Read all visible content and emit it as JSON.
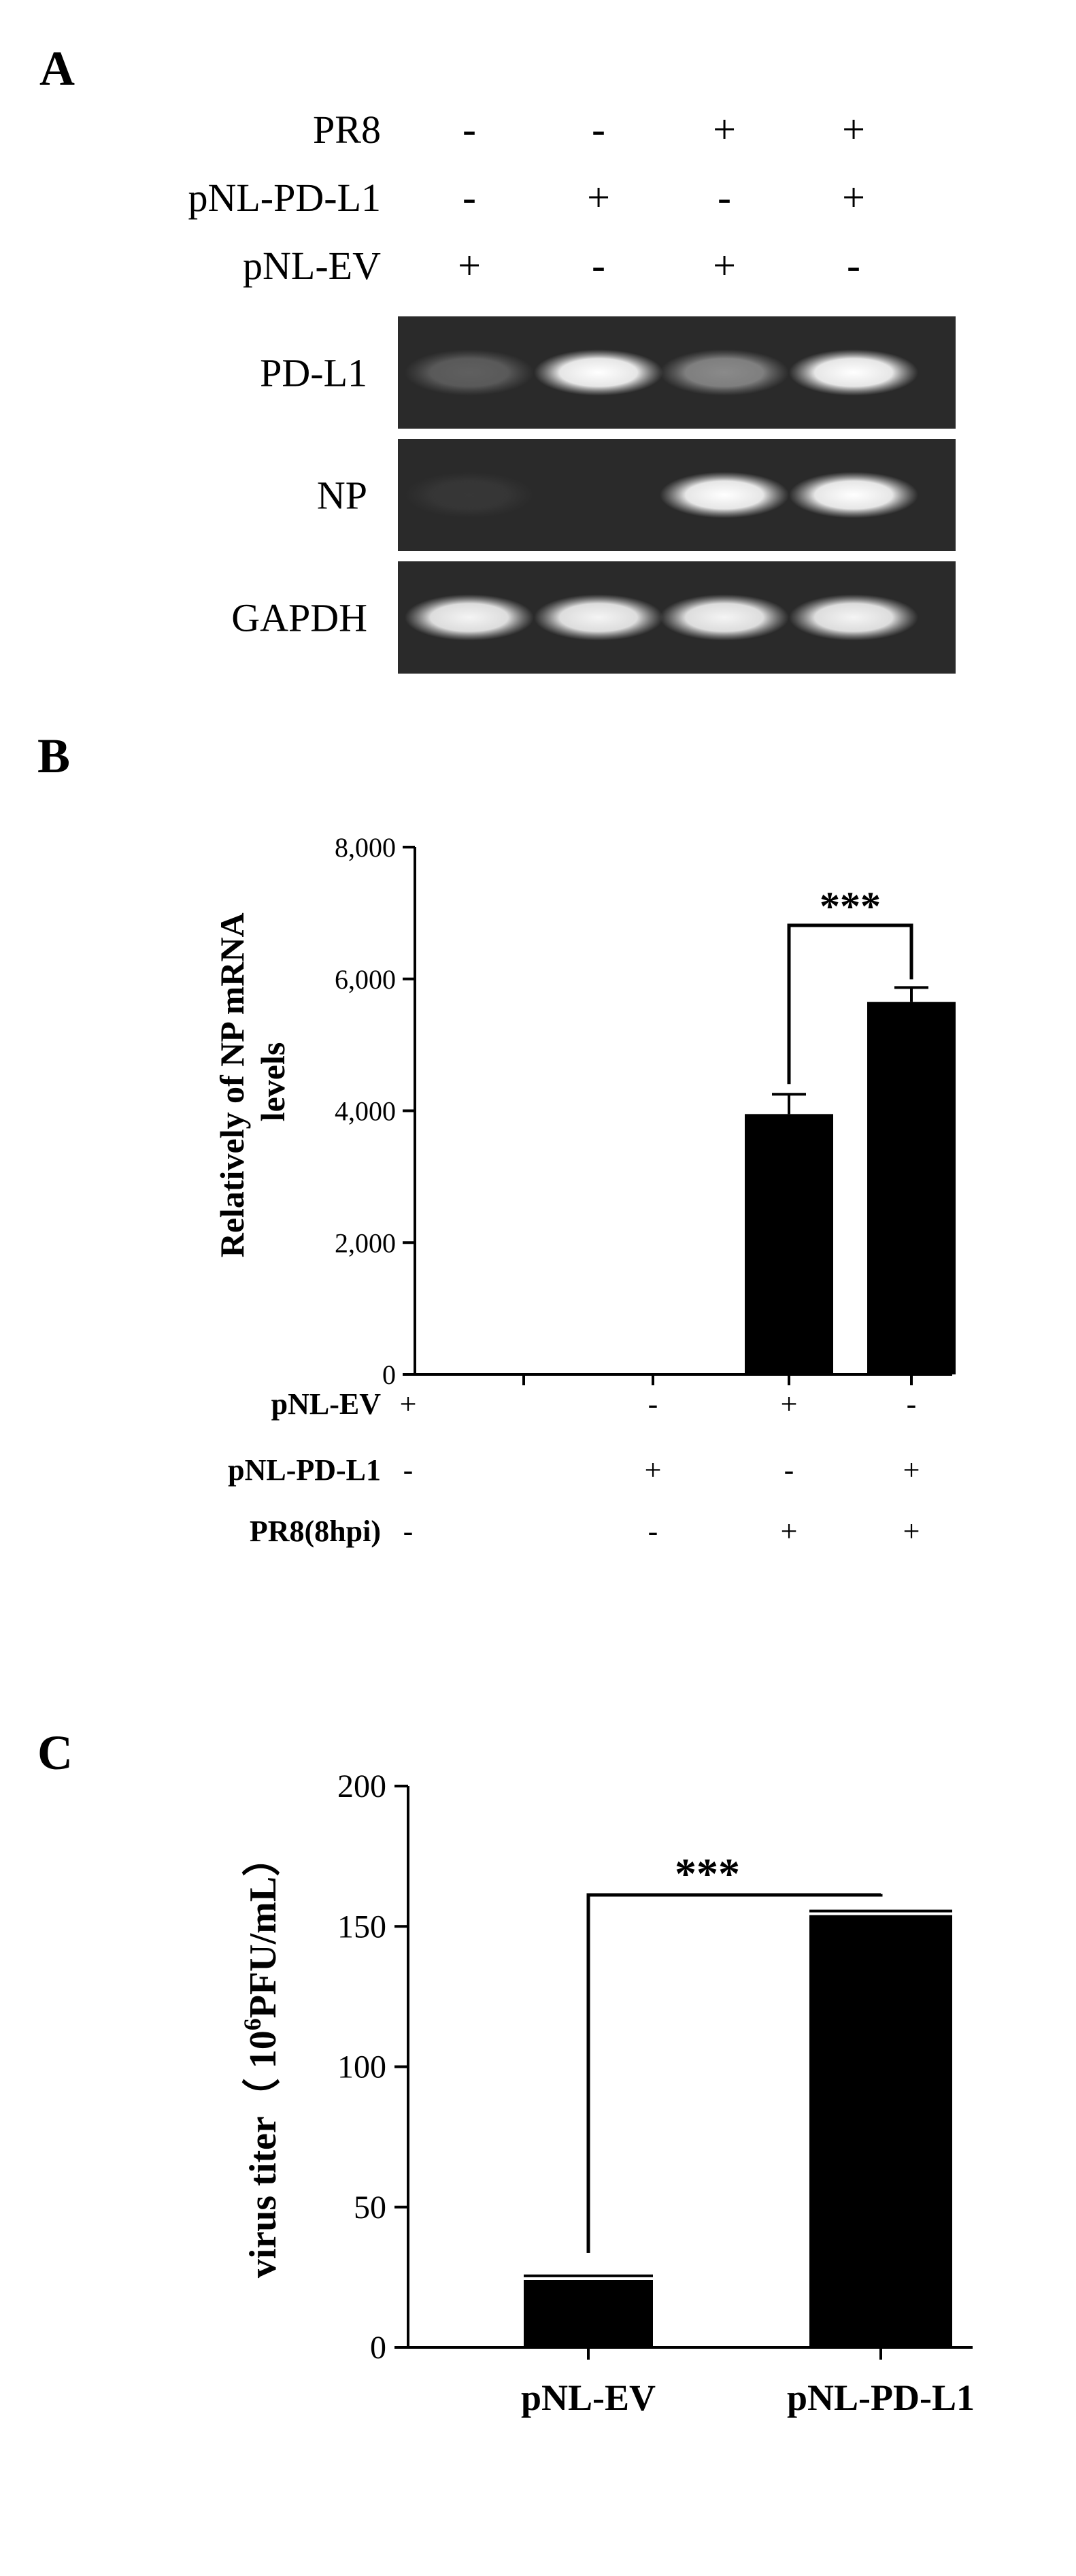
{
  "panelA": {
    "label": "A",
    "conditions": [
      {
        "name": "PR8",
        "signs": [
          "-",
          "-",
          "+",
          "+"
        ]
      },
      {
        "name": "pNL-PD-L1",
        "signs": [
          "-",
          "+",
          "-",
          "+"
        ]
      },
      {
        "name": "pNL-EV",
        "signs": [
          "+",
          "-",
          "+",
          "-"
        ]
      }
    ],
    "blots": [
      {
        "name": "PD-L1",
        "intensity": [
          0.25,
          1.0,
          0.45,
          1.0
        ]
      },
      {
        "name": "NP",
        "intensity": [
          0.06,
          0.0,
          1.0,
          1.0
        ]
      },
      {
        "name": "GAPDH",
        "intensity": [
          0.95,
          0.95,
          0.95,
          0.95
        ]
      }
    ],
    "colors": {
      "gel_bg": "#2a2a2a",
      "band": "#ffffff"
    }
  },
  "chart_data": [
    {
      "type": "bar",
      "label": "B",
      "ylabel_line1": "Relatively of NP mRNA",
      "ylabel_line2": "levels",
      "ylim": [
        0,
        8000
      ],
      "yticks": [
        0,
        2000,
        4000,
        6000,
        8000
      ],
      "ytick_labels": [
        "0",
        "2,000",
        "4,000",
        "6,000",
        "8,000"
      ],
      "values": [
        0,
        0,
        3950,
        5650
      ],
      "errors": [
        0,
        0,
        300,
        220
      ],
      "conditions": [
        {
          "name": "pNL-EV",
          "signs": [
            "+",
            "-",
            "+",
            "-"
          ]
        },
        {
          "name": "pNL-PD-L1",
          "signs": [
            "-",
            "+",
            "-",
            "+"
          ]
        },
        {
          "name": "PR8(8hpi)",
          "signs": [
            "-",
            "-",
            "+",
            "+"
          ]
        }
      ],
      "significance": {
        "from": 2,
        "to": 3,
        "text": "***"
      },
      "grid": false
    },
    {
      "type": "bar",
      "label": "C",
      "ylabel_prefix": "virus titer（ 10",
      "ylabel_sup": "6",
      "ylabel_suffix": "PFU/mL）",
      "categories": [
        "pNL-EV",
        "pNL-PD-L1"
      ],
      "values": [
        24,
        154
      ],
      "errors": [
        1.5,
        1.5
      ],
      "ylim": [
        0,
        200
      ],
      "yticks": [
        0,
        50,
        100,
        150,
        200
      ],
      "ytick_labels": [
        "0",
        "50",
        "100",
        "150",
        "200"
      ],
      "significance": {
        "from": 0,
        "to": 1,
        "text": "***"
      },
      "grid": false
    }
  ]
}
